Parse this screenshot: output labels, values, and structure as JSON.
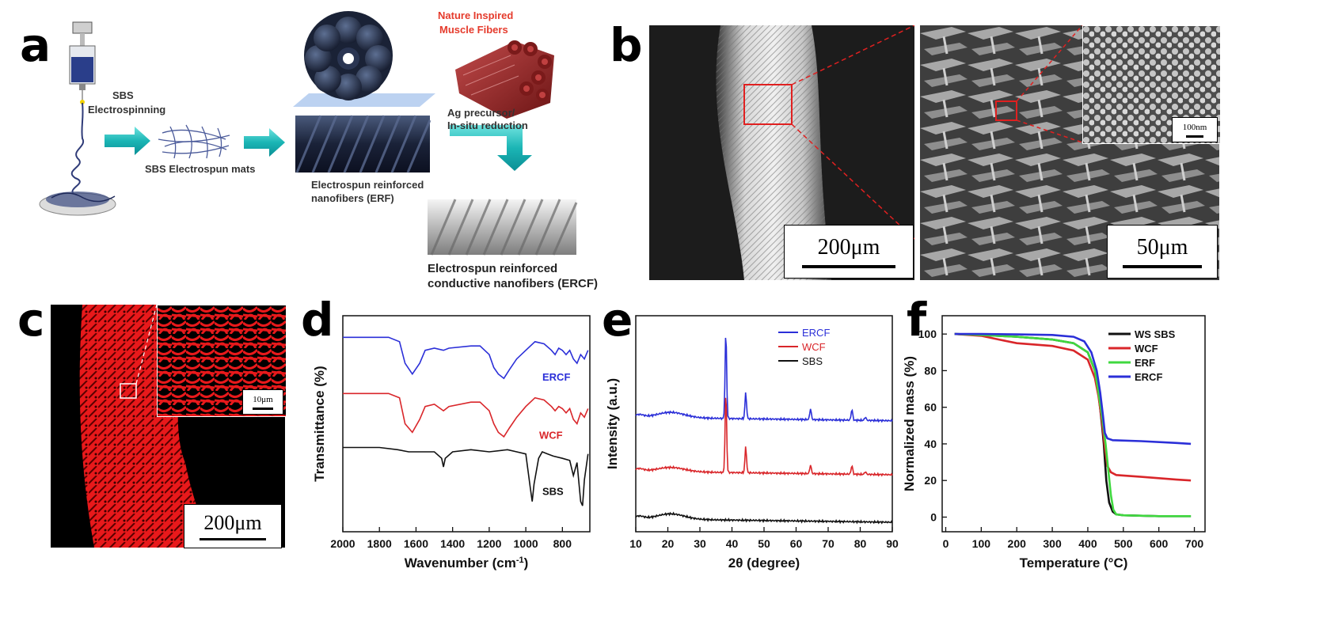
{
  "panels": {
    "a": "a",
    "b": "b",
    "c": "c",
    "d": "d",
    "e": "e",
    "f": "f"
  },
  "schematic": {
    "sbs_electrospinning": [
      "SBS",
      "Electrospinning"
    ],
    "sbs_mats": "SBS Electrospun mats",
    "nature": [
      "Nature Inspired",
      "Muscle Fibers"
    ],
    "ag_precursor": [
      "Ag precursor/",
      "In-situ reduction"
    ],
    "erf": [
      "Electrospun reinforced",
      "nanofibers (ERF)"
    ],
    "ercf": [
      "Electrospun reinforced",
      "conductive nanofibers (ERCF)"
    ]
  },
  "sem": {
    "scale_200": "200μm",
    "scale_50": "50μm",
    "scale_100nm": "100nm",
    "scale_10": "10μm",
    "scale_200c": "200μm"
  },
  "colors": {
    "blue": "#2b2fd8",
    "red": "#d9262a",
    "black": "#111111",
    "green": "#3fd83f",
    "fiber_red": "#e8191b"
  },
  "charts": [
    {
      "id": "ftir",
      "chart_data": {
        "type": "line",
        "xlabel": "Wavenumber (cm-1)",
        "ylabel": "Transmittance (%)",
        "xlim": [
          2000,
          650
        ],
        "xticks": [
          2000,
          1800,
          1600,
          1400,
          1200,
          1000,
          800
        ],
        "series": [
          {
            "name": "ERCF",
            "color": "#2b2fd8",
            "points": [
              [
                2000,
                0.9
              ],
              [
                1750,
                0.9
              ],
              [
                1690,
                0.88
              ],
              [
                1660,
                0.78
              ],
              [
                1620,
                0.73
              ],
              [
                1580,
                0.78
              ],
              [
                1550,
                0.84
              ],
              [
                1500,
                0.85
              ],
              [
                1450,
                0.84
              ],
              [
                1420,
                0.85
              ],
              [
                1300,
                0.86
              ],
              [
                1250,
                0.86
              ],
              [
                1200,
                0.82
              ],
              [
                1175,
                0.76
              ],
              [
                1150,
                0.73
              ],
              [
                1120,
                0.71
              ],
              [
                1090,
                0.75
              ],
              [
                1050,
                0.8
              ],
              [
                1000,
                0.84
              ],
              [
                950,
                0.88
              ],
              [
                900,
                0.87
              ],
              [
                860,
                0.84
              ],
              [
                840,
                0.82
              ],
              [
                820,
                0.85
              ],
              [
                800,
                0.84
              ],
              [
                780,
                0.82
              ],
              [
                760,
                0.84
              ],
              [
                740,
                0.8
              ],
              [
                720,
                0.78
              ],
              [
                700,
                0.82
              ],
              [
                680,
                0.8
              ],
              [
                660,
                0.84
              ]
            ]
          },
          {
            "name": "WCF",
            "color": "#d9262a",
            "points": [
              [
                2000,
                0.64
              ],
              [
                1750,
                0.64
              ],
              [
                1690,
                0.62
              ],
              [
                1660,
                0.5
              ],
              [
                1620,
                0.46
              ],
              [
                1580,
                0.52
              ],
              [
                1550,
                0.58
              ],
              [
                1500,
                0.59
              ],
              [
                1450,
                0.56
              ],
              [
                1420,
                0.58
              ],
              [
                1300,
                0.6
              ],
              [
                1250,
                0.6
              ],
              [
                1200,
                0.56
              ],
              [
                1175,
                0.5
              ],
              [
                1150,
                0.46
              ],
              [
                1120,
                0.44
              ],
              [
                1090,
                0.48
              ],
              [
                1050,
                0.53
              ],
              [
                1000,
                0.58
              ],
              [
                950,
                0.62
              ],
              [
                900,
                0.61
              ],
              [
                860,
                0.58
              ],
              [
                840,
                0.56
              ],
              [
                820,
                0.58
              ],
              [
                800,
                0.57
              ],
              [
                780,
                0.55
              ],
              [
                760,
                0.57
              ],
              [
                740,
                0.52
              ],
              [
                720,
                0.5
              ],
              [
                700,
                0.55
              ],
              [
                680,
                0.53
              ],
              [
                660,
                0.57
              ]
            ]
          },
          {
            "name": "SBS",
            "color": "#111111",
            "points": [
              [
                2000,
                0.39
              ],
              [
                1800,
                0.39
              ],
              [
                1700,
                0.38
              ],
              [
                1640,
                0.37
              ],
              [
                1600,
                0.37
              ],
              [
                1500,
                0.37
              ],
              [
                1460,
                0.34
              ],
              [
                1450,
                0.3
              ],
              [
                1440,
                0.34
              ],
              [
                1400,
                0.37
              ],
              [
                1300,
                0.38
              ],
              [
                1200,
                0.37
              ],
              [
                1100,
                0.38
              ],
              [
                1050,
                0.37
              ],
              [
                1000,
                0.36
              ],
              [
                975,
                0.2
              ],
              [
                965,
                0.14
              ],
              [
                955,
                0.22
              ],
              [
                930,
                0.34
              ],
              [
                910,
                0.37
              ],
              [
                880,
                0.36
              ],
              [
                850,
                0.35
              ],
              [
                800,
                0.34
              ],
              [
                760,
                0.33
              ],
              [
                740,
                0.26
              ],
              [
                720,
                0.32
              ],
              [
                700,
                0.14
              ],
              [
                690,
                0.12
              ],
              [
                680,
                0.24
              ],
              [
                660,
                0.36
              ]
            ]
          }
        ],
        "labels": [
          "ERCF",
          "WCF",
          "SBS"
        ]
      }
    },
    {
      "id": "xrd",
      "chart_data": {
        "type": "line",
        "xlabel": "2θ (degree)",
        "ylabel": "Intensity (a.u.)",
        "xlim": [
          10,
          90
        ],
        "xticks": [
          10,
          20,
          30,
          40,
          50,
          60,
          70,
          80,
          90
        ],
        "legend": [
          "ERCF",
          "WCF",
          "SBS"
        ],
        "series": [
          {
            "name": "ERCF",
            "color": "#2b2fd8",
            "base": 0.53,
            "hump": 0.025,
            "peaks": [
              [
                38.1,
                0.4
              ],
              [
                44.3,
                0.12
              ],
              [
                64.5,
                0.05
              ],
              [
                77.4,
                0.05
              ],
              [
                81.6,
                0.015
              ]
            ]
          },
          {
            "name": "WCF",
            "color": "#d9262a",
            "base": 0.28,
            "hump": 0.02,
            "peaks": [
              [
                38.1,
                0.37
              ],
              [
                44.3,
                0.12
              ],
              [
                64.5,
                0.04
              ],
              [
                77.4,
                0.04
              ],
              [
                81.6,
                0.012
              ]
            ]
          },
          {
            "name": "SBS",
            "color": "#111111",
            "base": 0.06,
            "hump": 0.025,
            "peaks": []
          }
        ]
      }
    },
    {
      "id": "tga",
      "chart_data": {
        "type": "line",
        "xlabel": "Temperature (°C)",
        "ylabel": "Normalized mass (%)",
        "xlim": [
          -10,
          730
        ],
        "ylim": [
          -8,
          110
        ],
        "xticks": [
          0,
          100,
          200,
          300,
          400,
          500,
          600,
          700
        ],
        "yticks": [
          0,
          20,
          40,
          60,
          80,
          100
        ],
        "legend": [
          "WS SBS",
          "WCF",
          "ERF",
          "ERCF"
        ],
        "series": [
          {
            "name": "WS SBS",
            "color": "#111111",
            "points": [
              [
                25,
                100
              ],
              [
                100,
                99.5
              ],
              [
                200,
                98.5
              ],
              [
                300,
                97
              ],
              [
                360,
                95
              ],
              [
                400,
                90
              ],
              [
                420,
                80
              ],
              [
                430,
                68
              ],
              [
                440,
                50
              ],
              [
                445,
                40
              ],
              [
                452,
                20
              ],
              [
                460,
                8
              ],
              [
                470,
                3
              ],
              [
                480,
                1.5
              ],
              [
                500,
                1
              ],
              [
                600,
                0.5
              ],
              [
                690,
                0.5
              ]
            ]
          },
          {
            "name": "WCF",
            "color": "#d9262a",
            "points": [
              [
                25,
                100
              ],
              [
                100,
                99
              ],
              [
                150,
                97
              ],
              [
                200,
                95
              ],
              [
                300,
                93.5
              ],
              [
                360,
                91
              ],
              [
                400,
                86
              ],
              [
                420,
                76
              ],
              [
                430,
                66
              ],
              [
                440,
                52
              ],
              [
                448,
                38
              ],
              [
                455,
                28
              ],
              [
                465,
                24.5
              ],
              [
                480,
                23
              ],
              [
                550,
                22
              ],
              [
                650,
                20.5
              ],
              [
                690,
                20
              ]
            ]
          },
          {
            "name": "ERF",
            "color": "#3fd83f",
            "points": [
              [
                25,
                100
              ],
              [
                100,
                99.5
              ],
              [
                200,
                98.5
              ],
              [
                300,
                97
              ],
              [
                360,
                95
              ],
              [
                400,
                90
              ],
              [
                420,
                80
              ],
              [
                430,
                68
              ],
              [
                440,
                55
              ],
              [
                450,
                40
              ],
              [
                458,
                25
              ],
              [
                465,
                12
              ],
              [
                472,
                4
              ],
              [
                480,
                1.5
              ],
              [
                500,
                1
              ],
              [
                600,
                0.5
              ],
              [
                690,
                0.5
              ]
            ]
          },
          {
            "name": "ERCF",
            "color": "#2b2fd8",
            "points": [
              [
                25,
                100
              ],
              [
                100,
                100
              ],
              [
                200,
                99.8
              ],
              [
                300,
                99.5
              ],
              [
                360,
                98.5
              ],
              [
                390,
                96
              ],
              [
                410,
                90
              ],
              [
                425,
                80
              ],
              [
                435,
                68
              ],
              [
                443,
                55
              ],
              [
                448,
                46
              ],
              [
                455,
                43
              ],
              [
                470,
                42
              ],
              [
                550,
                41.5
              ],
              [
                650,
                40.5
              ],
              [
                690,
                40
              ]
            ]
          }
        ]
      }
    }
  ]
}
